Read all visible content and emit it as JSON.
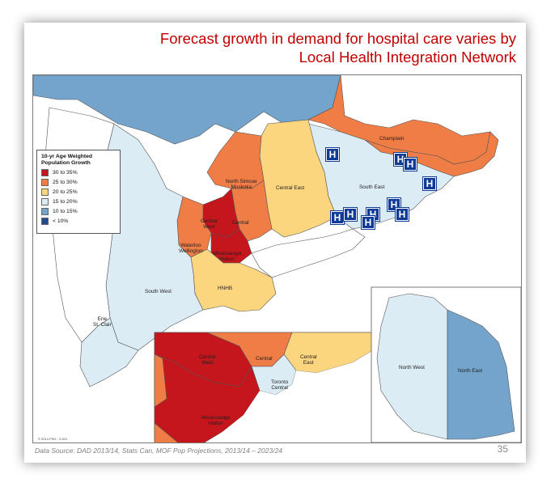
{
  "title": {
    "line1": "Forecast growth in demand for hospital care varies by",
    "line2": "Local Health Integration Network"
  },
  "legend": {
    "title_line1": "10-yr Age Weighted",
    "title_line2": "Population Growth",
    "items": [
      {
        "label": "30 to 35%",
        "color": "#c4161c"
      },
      {
        "label": "25 to 30%",
        "color": "#f07c46"
      },
      {
        "label": "20 to 25%",
        "color": "#fcd57f"
      },
      {
        "label": "15 to 20%",
        "color": "#dcecf5"
      },
      {
        "label": "10 to 15%",
        "color": "#74a4cc"
      },
      {
        "label": "< 10%",
        "color": "#234b8d"
      }
    ]
  },
  "regions": {
    "champlain": "Champlain",
    "south_east": "South East",
    "central_east": "Central East",
    "north_simcoe_line1": "North Simcoe",
    "north_simcoe_line2": "Muskoka",
    "central": "Central",
    "central_west_line1": "Central",
    "central_west_line2": "West",
    "waterloo_line1": "Waterloo",
    "waterloo_line2": "Wellington",
    "mississauga_line1": "Mississauga",
    "mississauga_line2": "Halton",
    "hnhb": "HNHB",
    "south_west": "South West",
    "erie_line1": "Erie",
    "erie_line2": "St. Clair"
  },
  "inset_gta": {
    "central_west_line1": "Central",
    "central_west_line2": "West",
    "central": "Central",
    "central_east_line1": "Central",
    "central_east_line2": "East",
    "toronto_line1": "Toronto",
    "toronto_line2": "Central",
    "mississauga_line1": "Mississauga",
    "mississauga_line2": "Halton"
  },
  "inset_north": {
    "north_west": "North West",
    "north_east": "North East"
  },
  "hospital_icon_letter": "H",
  "copyright": "© 2014 PSG - S.021",
  "source": "Data Source: DAD 2013/14, Stats Can, MOF Pop Projections, 2013/14 – 2023/24",
  "page_number": "35",
  "colors": {
    "title": "#c00000",
    "hospital": "#0f3b96",
    "northwest": "#dcecf5",
    "northeast": "#74a4cc",
    "water": "#ffffff"
  }
}
